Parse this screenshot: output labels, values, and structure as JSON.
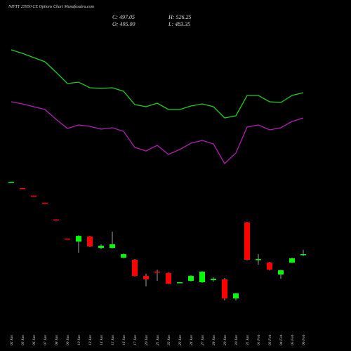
{
  "chart_data": {
    "type": "candlestick",
    "title": "NIFTY 25950 CE Options Chart Munafasutra.com",
    "close_text": "C: 497.05",
    "open_text": "O: 495.00",
    "high_text": "H: 526.25",
    "low_text": "L: 483.35",
    "categories": [
      "02 Jan",
      "03 Jan",
      "06 Jan",
      "07 Jan",
      "08 Jan",
      "09 Jan",
      "10 Jan",
      "13 Jan",
      "14 Jan",
      "15 Jan",
      "16 Jan",
      "17 Jan",
      "20 Jan",
      "21 Jan",
      "22 Jan",
      "23 Jan",
      "24 Jan",
      "27 Jan",
      "28 Jan",
      "29 Jan",
      "30 Jan",
      "31 Jan",
      "01 Feb",
      "03 Feb",
      "04 Feb",
      "05 Feb",
      "06 Feb"
    ],
    "open": [
      1000,
      958,
      905,
      856,
      739,
      606,
      585,
      620,
      541,
      541,
      473,
      458,
      345,
      375,
      365,
      300,
      311,
      301,
      316,
      321,
      188,
      718,
      458,
      438,
      355,
      438,
      495
    ],
    "high": [
      1003,
      959,
      906,
      857,
      740,
      607,
      629,
      624,
      566,
      654,
      502,
      463,
      360,
      389,
      370,
      303,
      350,
      380,
      335,
      330,
      228,
      722,
      497,
      443,
      389,
      473,
      526.25
    ],
    "low": [
      999,
      954,
      901,
      852,
      735,
      602,
      507,
      546,
      531,
      536,
      468,
      340,
      272,
      311,
      286,
      297,
      306,
      296,
      306,
      174,
      174,
      453,
      424,
      384,
      325,
      433,
      483.35
    ],
    "close": [
      1002,
      955,
      902,
      853,
      736,
      603,
      624,
      551,
      556,
      566,
      497,
      345,
      321,
      372,
      291,
      301,
      345,
      375,
      325,
      188,
      223,
      458,
      463,
      389,
      384,
      468,
      497.05
    ],
    "up_color": "#00ff00",
    "down_color": "#ff0000",
    "ylim": [
      115,
      1095
    ],
    "indicators": [
      {
        "color": "#22cc22",
        "values": [
          84.5,
          82,
          79,
          76,
          68.5,
          60.5,
          61.5,
          57.5,
          57,
          57.5,
          55,
          45.5,
          44,
          46.5,
          42,
          42,
          44.5,
          46,
          44,
          36,
          37.5,
          52,
          52,
          47.5,
          47,
          52,
          54
        ]
      },
      {
        "color": "#b020b0",
        "values": [
          47.5,
          46,
          44,
          42,
          35,
          28.5,
          31,
          30,
          28,
          29,
          26.5,
          15,
          12.5,
          16.5,
          10,
          13.5,
          18,
          20,
          17.5,
          3.5,
          11,
          29.5,
          31,
          27.5,
          29,
          33.5,
          36
        ]
      }
    ],
    "y2lim": [
      0,
      100
    ]
  }
}
